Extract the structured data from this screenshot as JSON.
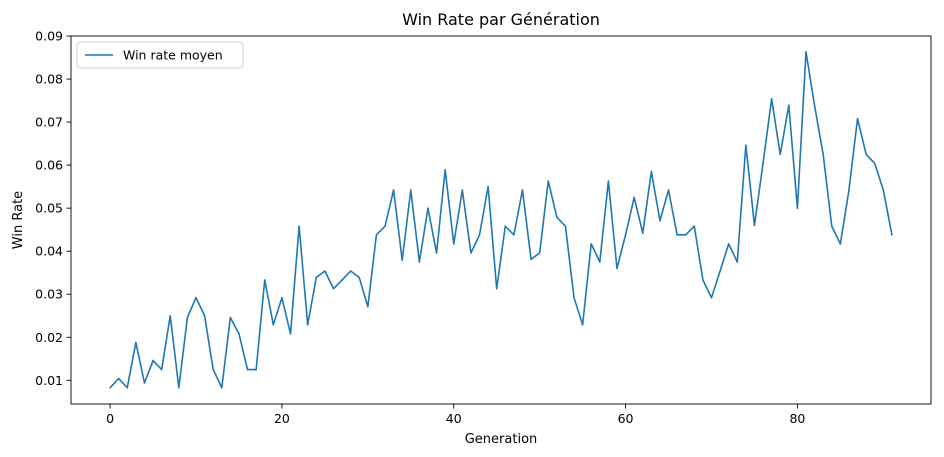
{
  "chart_data": {
    "type": "line",
    "title": "Win Rate par Génération",
    "xlabel": "Generation",
    "ylabel": "Win Rate",
    "xlim": [
      -4.55,
      95.55
    ],
    "ylim": [
      0.0045,
      0.09
    ],
    "xticks": [
      0,
      20,
      40,
      60,
      80
    ],
    "xtick_labels": [
      "0",
      "20",
      "40",
      "60",
      "80"
    ],
    "yticks": [
      0.01,
      0.02,
      0.03,
      0.04,
      0.05,
      0.06,
      0.07,
      0.08,
      0.09
    ],
    "ytick_labels": [
      "0.01",
      "0.02",
      "0.03",
      "0.04",
      "0.05",
      "0.06",
      "0.07",
      "0.08",
      "0.09"
    ],
    "grid": false,
    "legend_position": "top-left",
    "series": [
      {
        "name": "Win rate moyen",
        "color": "#1f77b4",
        "x": [
          0,
          1,
          2,
          3,
          4,
          5,
          6,
          7,
          8,
          9,
          10,
          11,
          12,
          13,
          14,
          15,
          16,
          17,
          18,
          19,
          20,
          21,
          22,
          23,
          24,
          25,
          26,
          27,
          28,
          29,
          30,
          31,
          32,
          33,
          34,
          35,
          36,
          37,
          38,
          39,
          40,
          41,
          42,
          43,
          44,
          45,
          46,
          47,
          48,
          49,
          50,
          51,
          52,
          53,
          54,
          55,
          56,
          57,
          58,
          59,
          60,
          61,
          62,
          63,
          64,
          65,
          66,
          67,
          68,
          69,
          70,
          71,
          72,
          73,
          74,
          75,
          76,
          77,
          78,
          79,
          80,
          81,
          82,
          83,
          84,
          85,
          86,
          87,
          88,
          89,
          90,
          91
        ],
        "values": [
          0.0083,
          0.0104,
          0.0083,
          0.0188,
          0.0094,
          0.0146,
          0.0125,
          0.025,
          0.0083,
          0.0246,
          0.0292,
          0.025,
          0.0125,
          0.0083,
          0.0246,
          0.0208,
          0.0125,
          0.0125,
          0.0333,
          0.0229,
          0.0292,
          0.0208,
          0.0458,
          0.0229,
          0.0339,
          0.0354,
          0.0313,
          0.0333,
          0.0354,
          0.0339,
          0.0271,
          0.0438,
          0.0458,
          0.0542,
          0.0379,
          0.0542,
          0.0375,
          0.05,
          0.0396,
          0.0589,
          0.0417,
          0.0542,
          0.0396,
          0.0438,
          0.055,
          0.0313,
          0.0458,
          0.0438,
          0.0542,
          0.0381,
          0.0396,
          0.0563,
          0.0479,
          0.0458,
          0.0292,
          0.0229,
          0.0417,
          0.0375,
          0.0563,
          0.036,
          0.0438,
          0.0525,
          0.0442,
          0.0585,
          0.0471,
          0.0542,
          0.0438,
          0.0438,
          0.0458,
          0.0333,
          0.0292,
          0.0354,
          0.0417,
          0.0375,
          0.0646,
          0.046,
          0.0604,
          0.0754,
          0.0625,
          0.0739,
          0.05,
          0.0863,
          0.0738,
          0.0625,
          0.0458,
          0.0417,
          0.0542,
          0.0708,
          0.0625,
          0.0604,
          0.0542,
          0.0438
        ]
      }
    ]
  }
}
